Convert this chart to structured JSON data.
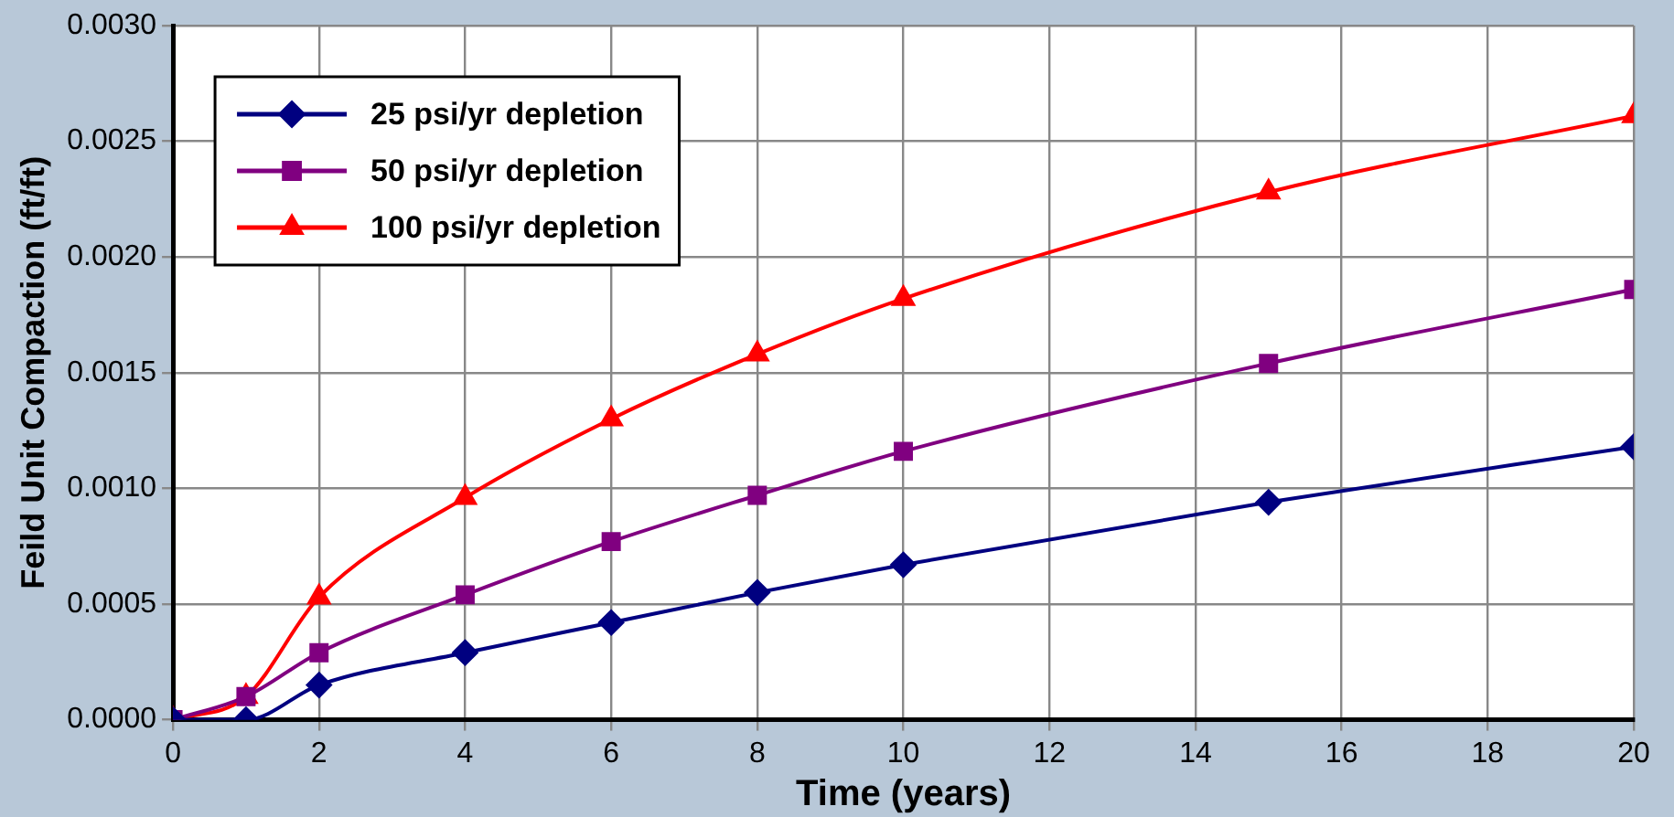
{
  "chart_data": {
    "type": "line",
    "xlabel": "Time (years)",
    "ylabel": "Feild Unit Compaction (ft/ft)",
    "xlim": [
      0,
      20
    ],
    "xticks": [
      0,
      2,
      4,
      6,
      8,
      10,
      12,
      14,
      16,
      18,
      20
    ],
    "ylim": [
      0,
      0.003
    ],
    "yticks": [
      {
        "value": 0,
        "label": "0.0000"
      },
      {
        "value": 0.0005,
        "label": "0.0005"
      },
      {
        "value": 0.001,
        "label": "0.0010"
      },
      {
        "value": 0.0015,
        "label": "0.0015"
      },
      {
        "value": 0.002,
        "label": "0.0020"
      },
      {
        "value": 0.0025,
        "label": "0.0025"
      },
      {
        "value": 0.003,
        "label": "0.0030"
      }
    ],
    "x": [
      0,
      1,
      2,
      4,
      6,
      8,
      10,
      15,
      20
    ],
    "series": [
      {
        "name": "25 psi/yr depletion",
        "color": "#000080",
        "marker": "diamond",
        "values": [
          0,
          0,
          0.00015,
          0.00029,
          0.00042,
          0.00055,
          0.00067,
          0.00094,
          0.00118
        ]
      },
      {
        "name": "50 psi/yr depletion",
        "color": "#800080",
        "marker": "square",
        "values": [
          0,
          0.0001,
          0.00029,
          0.00054,
          0.00077,
          0.00097,
          0.00116,
          0.00154,
          0.00186
        ]
      },
      {
        "name": "100 psi/yr depletion",
        "color": "#ff0000",
        "marker": "triangle",
        "values": [
          0,
          0.0001,
          0.00053,
          0.00096,
          0.0013,
          0.00158,
          0.00182,
          0.00228,
          0.00261
        ]
      }
    ],
    "grid": true,
    "legend": "top left",
    "line_style": "solid"
  }
}
